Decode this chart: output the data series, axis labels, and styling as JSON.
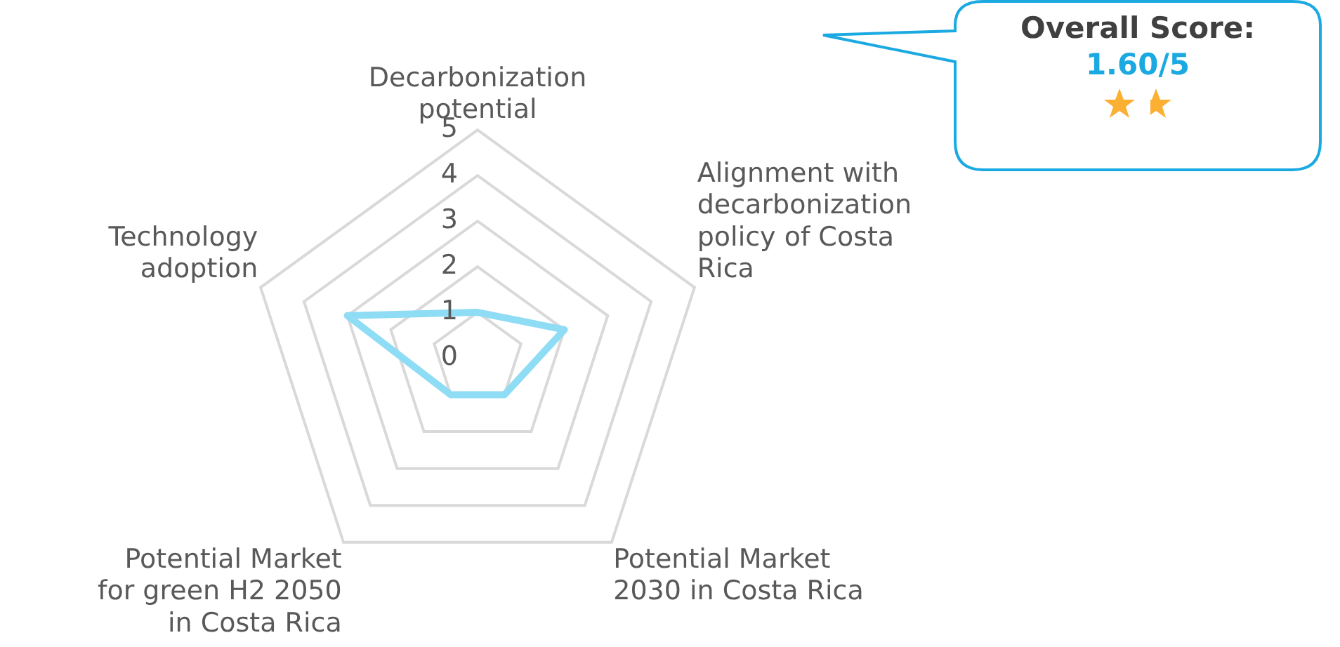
{
  "chart_data": {
    "type": "radar",
    "categories": [
      "Decarbonization potential",
      "Alignment with decarbonization policy of Costa Rica",
      "Potential Market 2030 in Costa Rica",
      "Potential Market for green H2 2050 in Costa Rica",
      "Technology adoption"
    ],
    "series": [
      {
        "color": "#8fdcf5",
        "values": [
          1,
          2,
          1,
          1,
          3
        ]
      }
    ],
    "ylim": [
      0,
      5
    ],
    "yticks": [
      0,
      1,
      2,
      3,
      4,
      5
    ],
    "grid": true,
    "legend": false,
    "marker": "none",
    "annotations": [
      "Overall Score:",
      "1.60/5"
    ]
  }
}
